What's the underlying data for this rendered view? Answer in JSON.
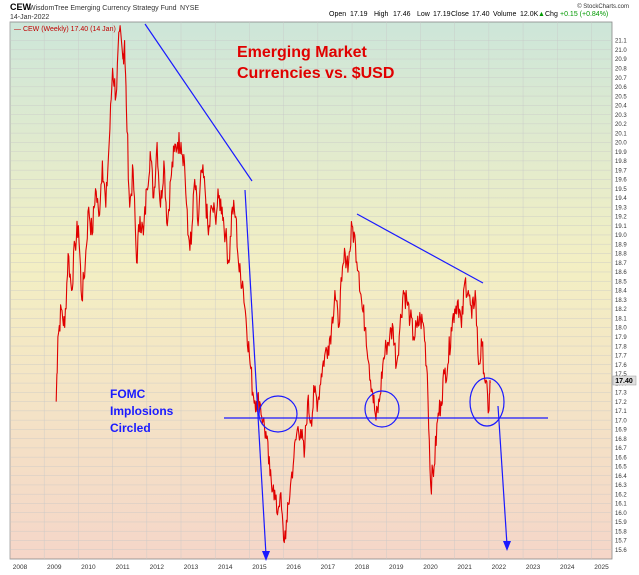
{
  "header": {
    "symbol": "CEW",
    "fund_name": "WisdomTree Emerging Currency Strategy Fund",
    "exchange": "NYSE",
    "date": "14-Jan-2022",
    "open_label": "Open",
    "open": "17.19",
    "high_label": "High",
    "high": "17.46",
    "low_label": "Low",
    "low": "17.19",
    "close_label": "Close",
    "close": "17.40",
    "volume_label": "Volume",
    "volume": "12.0K",
    "chg_label": "Chg",
    "chg": "+0.15 (+0.84%)",
    "brand": "© StockCharts.com",
    "up_arrow": "▲"
  },
  "legend_text": "— CEW (Weekly) 17.40 (14 Jan)",
  "annotations": {
    "title_line1": "Emerging Market",
    "title_line2": "Currencies vs. $USD",
    "note_line1": "FOMC",
    "note_line2": "Implosions",
    "note_line3": "Circled"
  },
  "price_badge": "17.40",
  "colors": {
    "price_line": "#e00000",
    "trend_line": "#1a1aff",
    "title_text": "#e00000",
    "note_text": "#1a1aff",
    "badge_bg": "#e0e0e0",
    "grid": "#c8c8c8"
  },
  "chart_data": {
    "type": "line",
    "title": "Emerging Market Currencies vs. $USD",
    "xlabel": "",
    "ylabel": "",
    "xlim": [
      2008.0,
      2025.6
    ],
    "ylim": [
      15.5,
      21.3
    ],
    "x_ticks": [
      "2008",
      "2009",
      "2010",
      "2011",
      "2012",
      "2013",
      "2014",
      "2015",
      "2016",
      "2017",
      "2018",
      "2019",
      "2020",
      "2021",
      "2022",
      "2023",
      "2024",
      "2025"
    ],
    "y_ticks": [
      "15.6",
      "15.7",
      "15.8",
      "15.9",
      "16.0",
      "16.1",
      "16.2",
      "16.3",
      "16.4",
      "16.5",
      "16.6",
      "16.7",
      "16.8",
      "16.9",
      "17.0",
      "17.1",
      "17.2",
      "17.3",
      "17.4",
      "17.5",
      "17.6",
      "17.7",
      "17.8",
      "17.9",
      "18.0",
      "18.1",
      "18.2",
      "18.3",
      "18.4",
      "18.5",
      "18.6",
      "18.7",
      "18.8",
      "18.9",
      "19.0",
      "19.1",
      "19.2",
      "19.3",
      "19.4",
      "19.5",
      "19.6",
      "19.7",
      "19.8",
      "19.9",
      "20.0",
      "20.1",
      "20.2",
      "20.3",
      "20.4",
      "20.5",
      "20.6",
      "20.7",
      "20.8",
      "20.9",
      "21.0",
      "21.1"
    ],
    "grid": true,
    "series": [
      {
        "name": "CEW (Weekly)",
        "x": [
          2009.35,
          2009.4,
          2009.5,
          2009.6,
          2009.7,
          2009.8,
          2009.9,
          2010.0,
          2010.1,
          2010.2,
          2010.3,
          2010.4,
          2010.5,
          2010.6,
          2010.7,
          2010.8,
          2010.9,
          2011.0,
          2011.1,
          2011.2,
          2011.3,
          2011.35,
          2011.4,
          2011.5,
          2011.6,
          2011.7,
          2011.8,
          2011.9,
          2012.0,
          2012.1,
          2012.2,
          2012.3,
          2012.4,
          2012.5,
          2012.6,
          2012.7,
          2012.8,
          2012.9,
          2013.0,
          2013.1,
          2013.2,
          2013.3,
          2013.4,
          2013.5,
          2013.6,
          2013.7,
          2013.8,
          2013.9,
          2014.0,
          2014.1,
          2014.2,
          2014.3,
          2014.4,
          2014.5,
          2014.6,
          2014.7,
          2014.8,
          2014.9,
          2015.0,
          2015.1,
          2015.2,
          2015.3,
          2015.4,
          2015.5,
          2015.6,
          2015.7,
          2015.8,
          2015.9,
          2016.0,
          2016.1,
          2016.2,
          2016.3,
          2016.4,
          2016.5,
          2016.6,
          2016.7,
          2016.8,
          2016.9,
          2017.0,
          2017.1,
          2017.2,
          2017.3,
          2017.4,
          2017.5,
          2017.6,
          2017.7,
          2017.8,
          2017.9,
          2018.0,
          2018.1,
          2018.2,
          2018.3,
          2018.4,
          2018.5,
          2018.6,
          2018.7,
          2018.8,
          2018.9,
          2019.0,
          2019.1,
          2019.2,
          2019.3,
          2019.4,
          2019.5,
          2019.6,
          2019.7,
          2019.8,
          2019.9,
          2020.0,
          2020.1,
          2020.2,
          2020.3,
          2020.4,
          2020.5,
          2020.6,
          2020.7,
          2020.8,
          2020.9,
          2021.0,
          2021.1,
          2021.2,
          2021.3,
          2021.4,
          2021.5,
          2021.6,
          2021.7,
          2021.8,
          2021.9,
          2022.0,
          2022.04
        ],
        "y": [
          17.2,
          17.9,
          18.2,
          18.0,
          18.8,
          18.4,
          18.9,
          19.1,
          18.3,
          18.7,
          19.3,
          19.0,
          19.5,
          19.2,
          19.8,
          19.3,
          20.0,
          20.8,
          20.5,
          21.2,
          20.9,
          21.1,
          20.4,
          19.3,
          19.7,
          18.7,
          19.2,
          19.0,
          19.5,
          19.9,
          19.4,
          20.0,
          19.3,
          19.8,
          19.1,
          19.6,
          19.9,
          20.0,
          20.0,
          19.8,
          19.0,
          18.9,
          19.6,
          19.1,
          19.7,
          19.5,
          19.0,
          19.3,
          19.2,
          19.4,
          19.3,
          19.0,
          18.7,
          19.3,
          19.2,
          18.6,
          18.5,
          18.1,
          17.7,
          17.3,
          17.2,
          17.2,
          17.0,
          16.8,
          16.4,
          16.3,
          16.0,
          16.2,
          15.7,
          15.9,
          16.3,
          16.6,
          16.9,
          16.9,
          16.6,
          17.2,
          17.0,
          17.3,
          17.2,
          17.5,
          17.7,
          17.8,
          18.0,
          18.4,
          18.0,
          18.5,
          18.8,
          18.7,
          19.1,
          18.9,
          18.6,
          18.2,
          18.0,
          17.6,
          17.3,
          17.0,
          17.2,
          17.6,
          17.8,
          17.9,
          18.0,
          17.6,
          18.0,
          18.4,
          18.3,
          18.1,
          17.9,
          18.0,
          18.1,
          18.0,
          17.5,
          16.3,
          16.5,
          17.0,
          17.2,
          17.5,
          17.6,
          18.0,
          18.2,
          18.3,
          18.0,
          18.5,
          18.4,
          18.1,
          18.4,
          17.6,
          17.8,
          17.4,
          17.1,
          17.4
        ]
      }
    ]
  }
}
